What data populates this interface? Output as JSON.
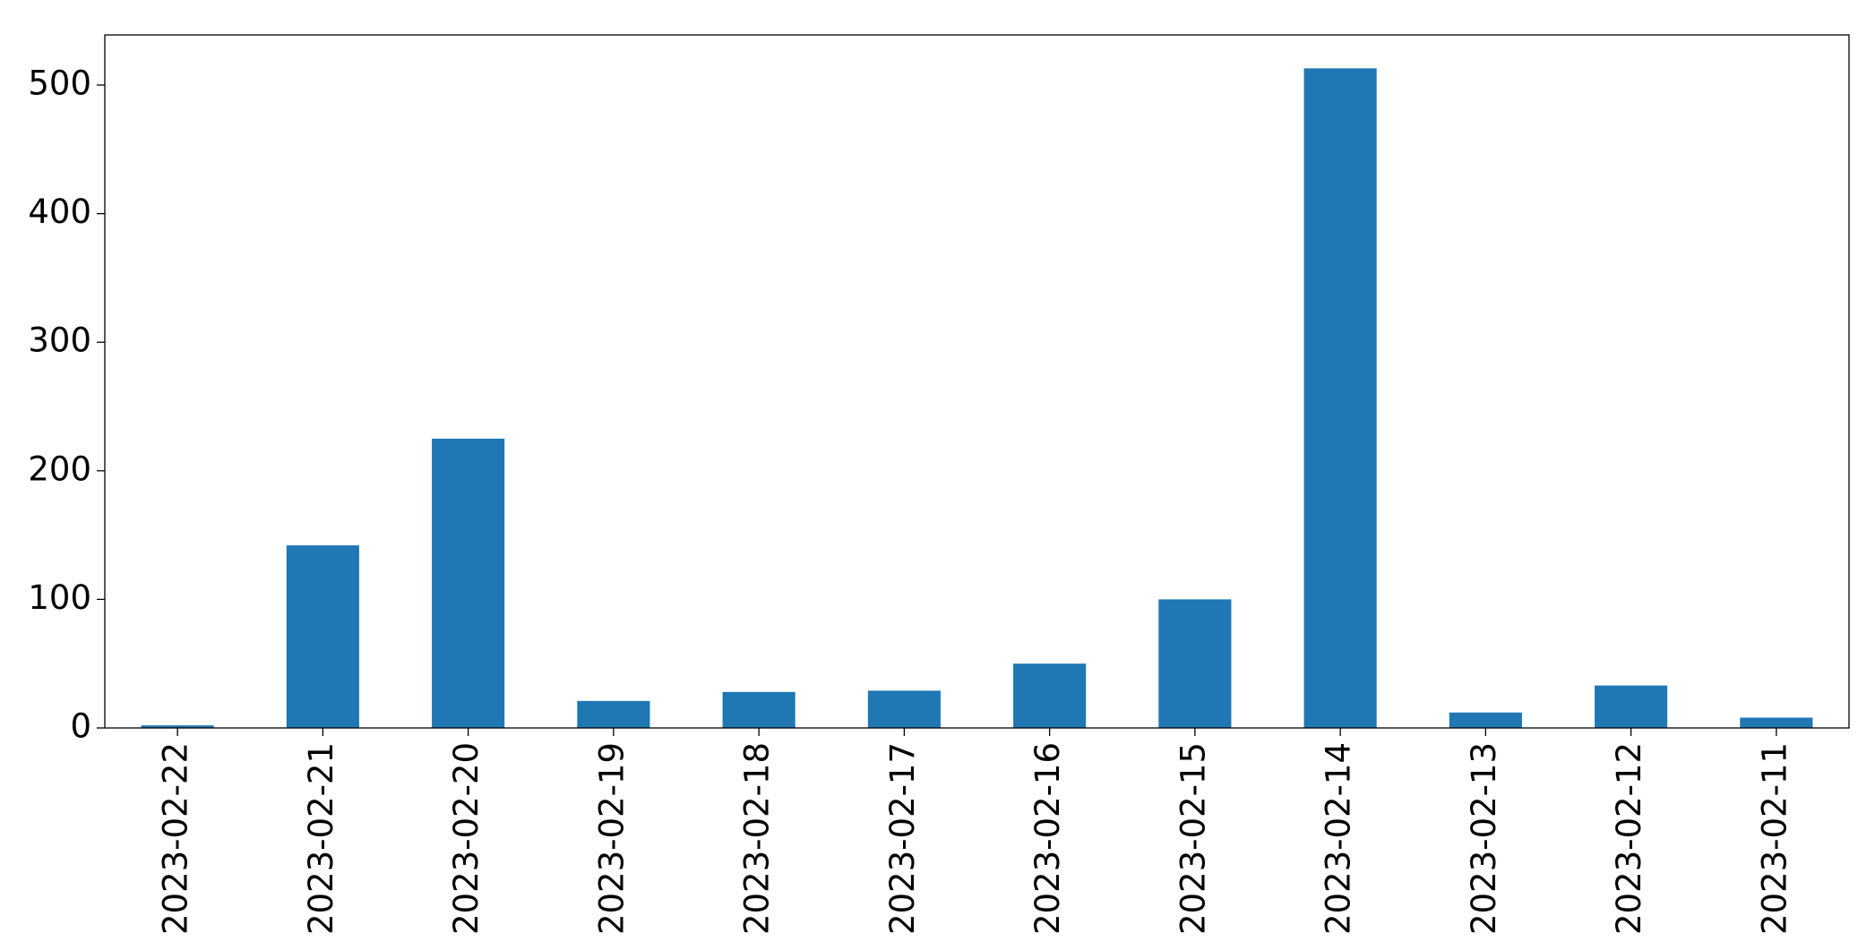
{
  "chart_data": {
    "type": "bar",
    "categories": [
      "2023-02-22",
      "2023-02-21",
      "2023-02-20",
      "2023-02-19",
      "2023-02-18",
      "2023-02-17",
      "2023-02-16",
      "2023-02-15",
      "2023-02-14",
      "2023-02-13",
      "2023-02-12",
      "2023-02-11"
    ],
    "values": [
      2,
      142,
      225,
      21,
      28,
      29,
      50,
      100,
      513,
      12,
      33,
      8
    ],
    "color": "#1f77b4",
    "ylim": [
      0,
      539
    ],
    "yticks": [
      0,
      100,
      200,
      300,
      400,
      500
    ],
    "grid": false
  }
}
